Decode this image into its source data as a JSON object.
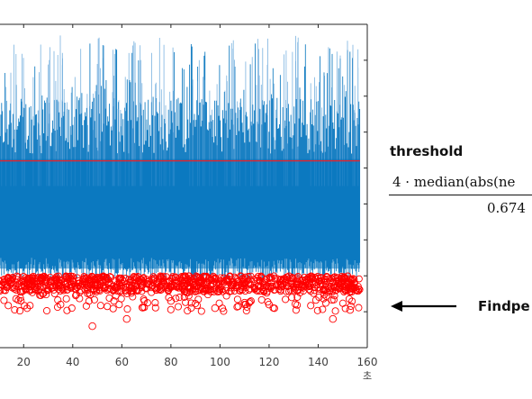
{
  "chart_data": {
    "type": "line",
    "xlim": [
      10,
      160
    ],
    "ylim": [
      -1,
      8
    ],
    "xticks": [
      20,
      40,
      60,
      80,
      100,
      120,
      140,
      160
    ],
    "x_unit_label": "초",
    "grid": false,
    "threshold_value": 4.2,
    "series": [
      {
        "role": "signal",
        "style": "line",
        "color": "#0072BD",
        "x_start": 0,
        "x_end": 157,
        "typical_range": [
          0.9,
          6.5
        ],
        "max_spikes": 7.6
      },
      {
        "role": "threshold",
        "style": "hline",
        "color": "#E8222A",
        "y": 4.2
      },
      {
        "role": "detected-peaks",
        "style": "markers",
        "marker": "circle",
        "color": "#FF0000",
        "x_start": 0,
        "x_end": 157,
        "typical_range": [
          0.4,
          1.0
        ],
        "min": -0.4
      }
    ]
  },
  "annotations": {
    "threshold_title": "threshold",
    "formula_numerator": "4 · median(abs(ne",
    "formula_denominator": "0.674",
    "arrow_label": "Findpe"
  },
  "colors": {
    "signal": "#0072BD",
    "threshold": "#E8222A",
    "markers": "#FF0000",
    "axis": "#262626"
  }
}
